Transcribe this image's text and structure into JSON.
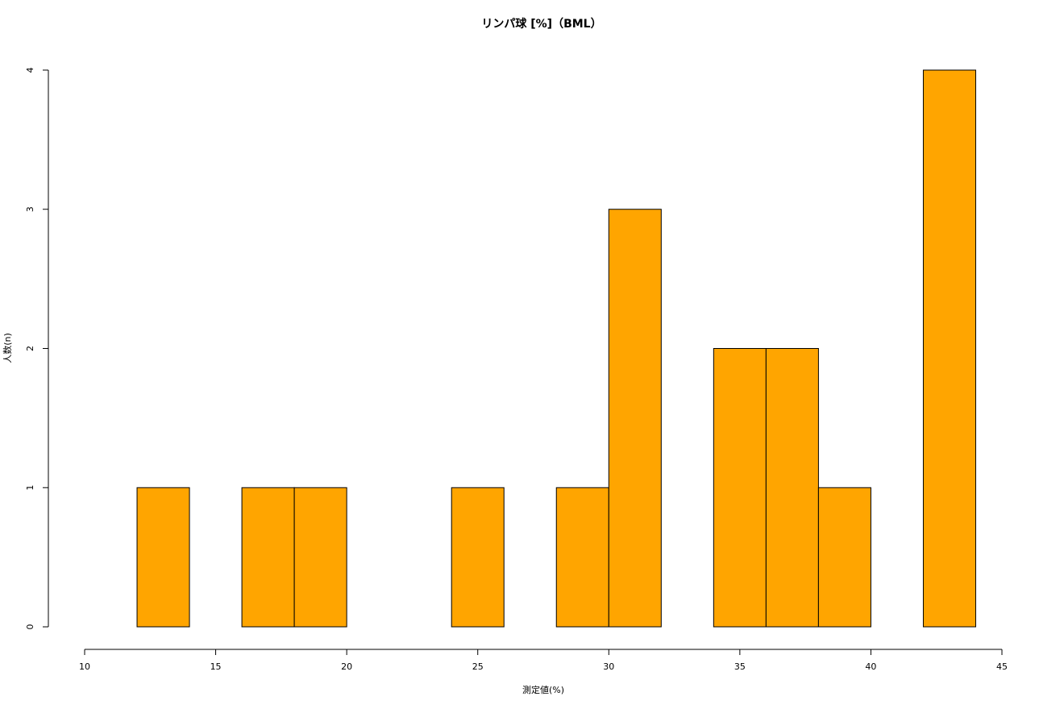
{
  "chart_data": {
    "type": "histogram",
    "title": "リンパ球 [%]（BML）",
    "x_label": "測定値(%)",
    "y_label": "人数(n)",
    "bins": [
      12,
      14,
      16,
      18,
      20,
      22,
      24,
      26,
      28,
      30,
      32,
      34,
      36,
      38,
      40,
      42,
      44
    ],
    "values": [
      1,
      0,
      1,
      1,
      0,
      0,
      1,
      0,
      1,
      3,
      0,
      2,
      2,
      1,
      0,
      4
    ],
    "color": "#ffa500",
    "xlim": [
      10,
      45
    ],
    "xticks": [
      10,
      15,
      20,
      25,
      30,
      35,
      40,
      45
    ],
    "ylim": [
      0,
      4
    ],
    "yticks": [
      0,
      1,
      2,
      3,
      4
    ]
  }
}
